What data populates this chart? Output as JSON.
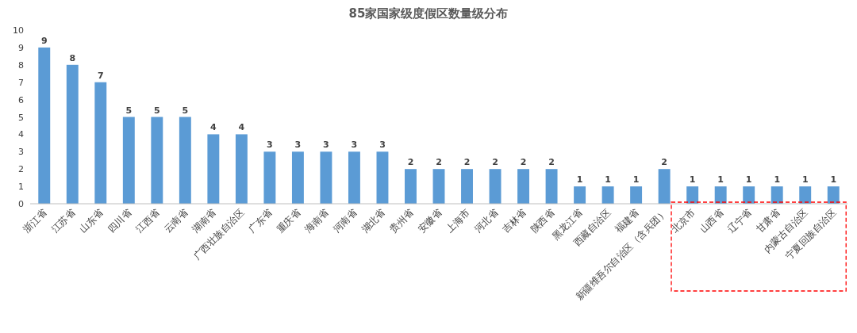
{
  "chart_data": {
    "type": "bar",
    "title": "85家国家级度假区数量级分布",
    "categories": [
      "浙江省",
      "江苏省",
      "山东省",
      "四川省",
      "江西省",
      "云南省",
      "湖南省",
      "广西壮族自治区",
      "广东省",
      "重庆省",
      "海南省",
      "河南省",
      "湖北省",
      "贵州省",
      "安徽省",
      "上海市",
      "河北省",
      "吉林省",
      "陕西省",
      "黑龙江省",
      "西藏自治区",
      "福建省",
      "新疆维吾尔自治区（含兵团）",
      "北京市",
      "山西省",
      "辽宁省",
      "甘肃省",
      "内蒙古自治区",
      "宁夏回族自治区"
    ],
    "values": [
      9,
      8,
      7,
      5,
      5,
      5,
      4,
      4,
      3,
      3,
      3,
      3,
      3,
      2,
      2,
      2,
      2,
      2,
      2,
      1,
      1,
      1,
      2,
      1,
      1,
      1,
      1,
      1,
      1
    ],
    "color": "#5b9bd5",
    "ylim": [
      0,
      10
    ],
    "yticks": [
      0,
      1,
      2,
      3,
      4,
      5,
      6,
      7,
      8,
      9,
      10
    ],
    "grid": false,
    "data_labels": true
  }
}
